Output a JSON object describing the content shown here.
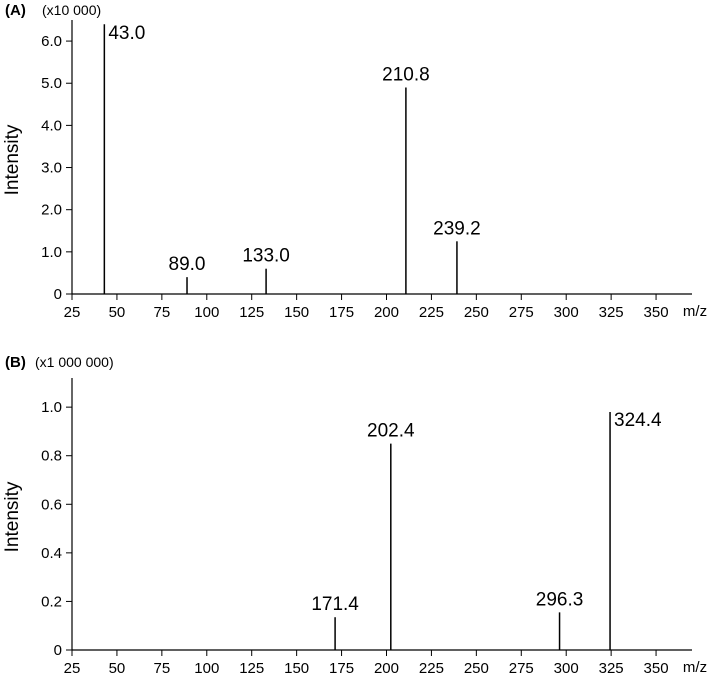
{
  "chart_data": [
    {
      "type": "bar",
      "panel_label": "(A)",
      "scale_note": "(x10 000)",
      "xlabel": "m/z",
      "ylabel": "Intensity",
      "xlim": [
        25,
        370
      ],
      "ylim": [
        0,
        6.5
      ],
      "x_ticks": [
        25,
        50,
        75,
        100,
        125,
        150,
        175,
        200,
        225,
        250,
        275,
        300,
        325,
        350
      ],
      "x_tick_labels": [
        "25",
        "50",
        "75",
        "100",
        "125",
        "150",
        "175",
        "200",
        "225",
        "250",
        "275",
        "300",
        "325",
        "350"
      ],
      "y_ticks": [
        0,
        1,
        2,
        3,
        4,
        5,
        6
      ],
      "y_tick_labels": [
        "0",
        "1.0",
        "2.0",
        "3.0",
        "4.0",
        "5.0",
        "6.0"
      ],
      "grid": false,
      "peaks": [
        {
          "x": 43.0,
          "y": 6.4,
          "label": "43.0"
        },
        {
          "x": 89.0,
          "y": 0.4,
          "label": "89.0"
        },
        {
          "x": 133.0,
          "y": 0.6,
          "label": "133.0"
        },
        {
          "x": 210.8,
          "y": 4.9,
          "label": "210.8"
        },
        {
          "x": 239.2,
          "y": 1.25,
          "label": "239.2"
        }
      ]
    },
    {
      "type": "bar",
      "panel_label": "(B)",
      "scale_note": "(x1 000 000)",
      "xlabel": "m/z",
      "ylabel": "Intensity",
      "xlim": [
        25,
        370
      ],
      "ylim": [
        0,
        1.12
      ],
      "x_ticks": [
        25,
        50,
        75,
        100,
        125,
        150,
        175,
        200,
        225,
        250,
        275,
        300,
        325,
        350
      ],
      "x_tick_labels": [
        "25",
        "50",
        "75",
        "100",
        "125",
        "150",
        "175",
        "200",
        "225",
        "250",
        "275",
        "300",
        "325",
        "350"
      ],
      "y_ticks": [
        0,
        0.2,
        0.4,
        0.6,
        0.8,
        1.0
      ],
      "y_tick_labels": [
        "0",
        "0.2",
        "0.4",
        "0.6",
        "0.8",
        "1.0"
      ],
      "grid": false,
      "peaks": [
        {
          "x": 171.4,
          "y": 0.135,
          "label": "171.4"
        },
        {
          "x": 202.4,
          "y": 0.85,
          "label": "202.4"
        },
        {
          "x": 296.3,
          "y": 0.155,
          "label": "296.3"
        },
        {
          "x": 324.4,
          "y": 0.98,
          "label": "324.4"
        }
      ]
    }
  ]
}
